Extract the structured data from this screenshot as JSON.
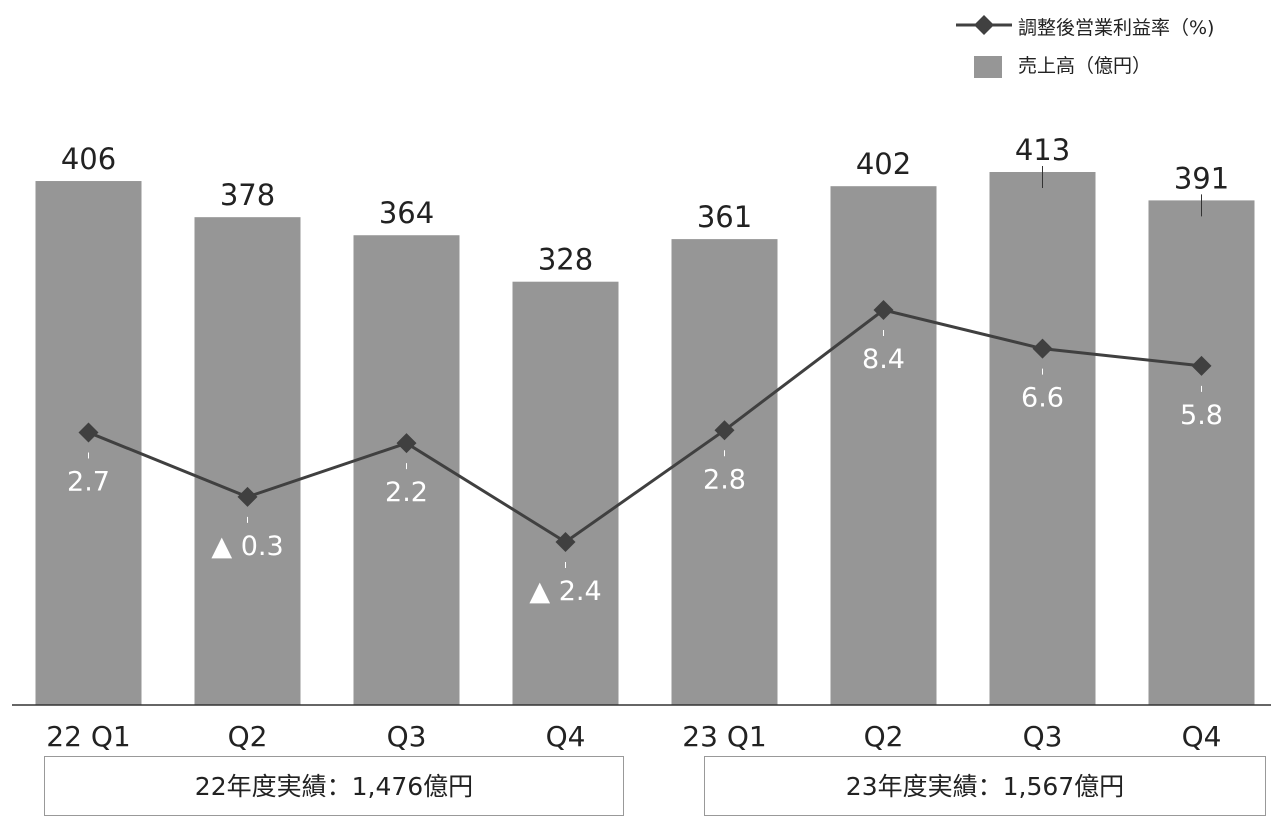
{
  "legend": {
    "line_label": "調整後営業利益率（%)",
    "bar_label": "売上高（億円）"
  },
  "annual_totals": [
    {
      "label": "22年度実績：1,476億円"
    },
    {
      "label": "23年度実績：1,567億円"
    }
  ],
  "chart_data": {
    "type": "bar",
    "categories": [
      "22 Q1",
      "Q2",
      "Q3",
      "Q4",
      "23 Q1",
      "Q2",
      "Q3",
      "Q4"
    ],
    "series": [
      {
        "name": "売上高（億円）",
        "type": "bar",
        "values": [
          406,
          378,
          364,
          328,
          361,
          402,
          413,
          391
        ],
        "labels": [
          "406",
          "378",
          "364",
          "328",
          "361",
          "402",
          "413",
          "391"
        ],
        "color": "#969696"
      },
      {
        "name": "調整後営業利益率（%)",
        "type": "line",
        "values": [
          2.7,
          -0.3,
          2.2,
          -2.4,
          2.8,
          8.4,
          6.6,
          5.8
        ],
        "labels": [
          "2.7",
          "▲ 0.3",
          "2.2",
          "▲ 2.4",
          "2.8",
          "8.4",
          "6.6",
          "5.8"
        ],
        "color": "#404040"
      }
    ],
    "bar_ylim": [
      0,
      413
    ],
    "line_ylim": [
      -2.4,
      8.4
    ],
    "grid": false
  }
}
